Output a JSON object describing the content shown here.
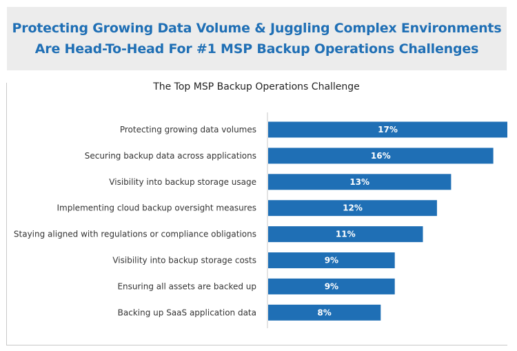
{
  "header": {
    "line1": "Protecting Growing Data Volume & Juggling Complex Environments",
    "line2": "Are Head-To-Head For #1 MSP Backup Operations Challenges"
  },
  "chart_data": {
    "type": "bar",
    "orientation": "horizontal",
    "title": "The Top MSP Backup Operations Challenge",
    "xlabel": "",
    "ylabel": "",
    "xlim": [
      0,
      17
    ],
    "grid": false,
    "legend": "none",
    "categories": [
      "Protecting growing data volumes",
      "Securing backup data across applications",
      "Visibility into backup storage usage",
      "Implementing cloud backup oversight measures",
      "Staying aligned with regulations or compliance obligations",
      "Visibility into backup storage costs",
      "Ensuring all assets are backed up",
      "Backing up SaaS application data"
    ],
    "values": [
      17,
      16,
      13,
      12,
      11,
      9,
      9,
      8
    ],
    "value_labels": [
      "17%",
      "16%",
      "13%",
      "12%",
      "11%",
      "9%",
      "9%",
      "8%"
    ],
    "bar_color": "#1f6fb5"
  }
}
